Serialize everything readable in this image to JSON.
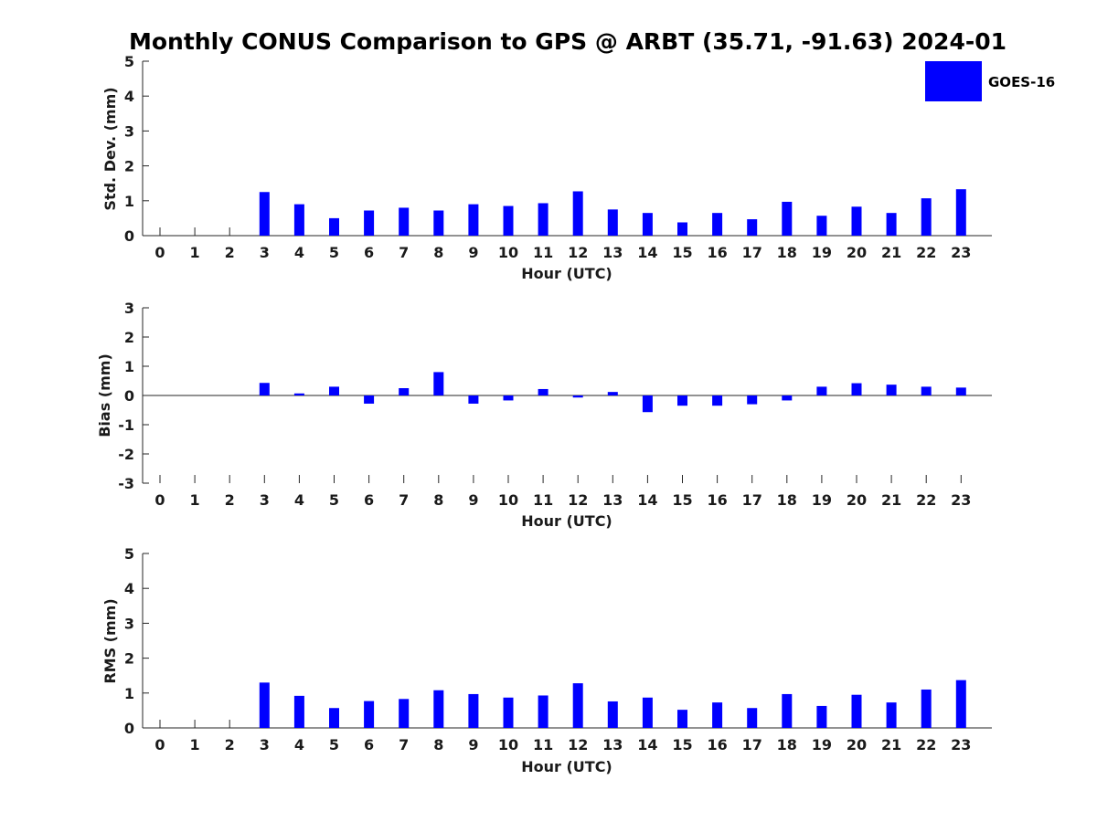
{
  "chart_data": {
    "type": "bar",
    "title": "Monthly CONUS Comparison to GPS @ ARBT (35.71, -91.63) 2024-01",
    "legend": {
      "label": "GOES-16",
      "color": "#0000ff",
      "placement": "top-right"
    },
    "categories": [
      "0",
      "1",
      "2",
      "3",
      "4",
      "5",
      "6",
      "7",
      "8",
      "9",
      "10",
      "11",
      "12",
      "13",
      "14",
      "15",
      "16",
      "17",
      "18",
      "19",
      "20",
      "21",
      "22",
      "23"
    ],
    "panels": [
      {
        "name": "std-dev",
        "xlabel": "Hour (UTC)",
        "ylabel": "Std. Dev. (mm)",
        "ylim": [
          0,
          5
        ],
        "yticks": [
          "0",
          "1",
          "2",
          "3",
          "4",
          "5"
        ],
        "values": [
          null,
          null,
          null,
          1.25,
          0.9,
          0.5,
          0.72,
          0.8,
          0.72,
          0.9,
          0.85,
          0.93,
          1.27,
          0.75,
          0.65,
          0.38,
          0.65,
          0.47,
          0.97,
          0.57,
          0.83,
          0.65,
          1.07,
          1.33
        ]
      },
      {
        "name": "bias",
        "xlabel": "Hour (UTC)",
        "ylabel": "Bias (mm)",
        "ylim": [
          -3,
          3
        ],
        "yticks": [
          "-3",
          "-2",
          "-1",
          "0",
          "1",
          "2",
          "3"
        ],
        "values": [
          null,
          null,
          null,
          0.43,
          0.07,
          0.3,
          -0.28,
          0.25,
          0.8,
          -0.28,
          -0.17,
          0.22,
          -0.07,
          0.12,
          -0.57,
          -0.35,
          -0.35,
          -0.3,
          -0.17,
          0.3,
          0.42,
          0.37,
          0.3,
          0.27
        ]
      },
      {
        "name": "rms",
        "xlabel": "Hour (UTC)",
        "ylabel": "RMS (mm)",
        "ylim": [
          0,
          5
        ],
        "yticks": [
          "0",
          "1",
          "2",
          "3",
          "4",
          "5"
        ],
        "values": [
          null,
          null,
          null,
          1.3,
          0.92,
          0.57,
          0.77,
          0.83,
          1.08,
          0.97,
          0.87,
          0.93,
          1.28,
          0.76,
          0.87,
          0.52,
          0.73,
          0.57,
          0.97,
          0.63,
          0.95,
          0.73,
          1.1,
          1.37
        ]
      }
    ]
  }
}
